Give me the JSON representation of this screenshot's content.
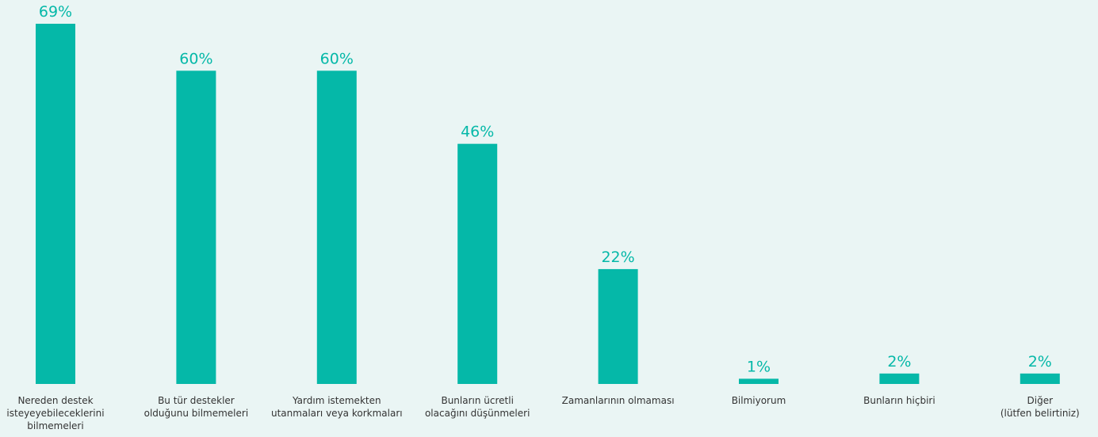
{
  "chart_data": {
    "type": "bar",
    "categories": [
      "Nereden destek\nisteyeyebileceklerini\nbilmemeleri",
      "Bu tür destekler\nolduğunu bilmemeleri",
      "Yardım istemekten\nutanmaları veya korkmaları",
      "Bunların ücretli\nolacağını düşünmeleri",
      "Zamanlarının olmaması",
      "Bilmiyorum",
      "Bunların hiçbiri",
      "Diğer\n(lütfen belirtiniz)"
    ],
    "values": [
      69,
      60,
      60,
      46,
      22,
      1,
      2,
      2
    ],
    "value_labels": [
      "69%",
      "60%",
      "60%",
      "46%",
      "22%",
      "1%",
      "2%",
      "2%"
    ],
    "color": "#05b8a8"
  }
}
